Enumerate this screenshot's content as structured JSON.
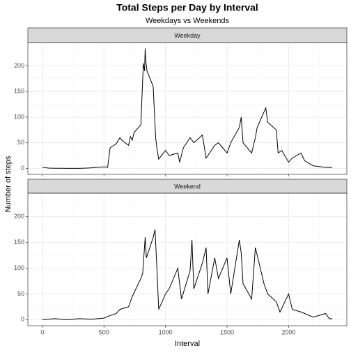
{
  "chart_data": {
    "type": "line",
    "title": "Total Steps per Day by Interval",
    "subtitle": "Weekdays vs Weekends",
    "xlabel": "Interval",
    "ylabel": "Number of steps",
    "facet": true,
    "grid": true,
    "xlim": [
      -118,
      2473
    ],
    "xticks": [
      0,
      500,
      1000,
      1500,
      2000
    ],
    "ylim": [
      -11.7,
      245.6
    ],
    "yticks": [
      0,
      50,
      100,
      150,
      200
    ],
    "series": [
      {
        "name": "Weekday",
        "color": "#000000",
        "x": [
          0,
          50,
          100,
          150,
          200,
          300,
          400,
          500,
          530,
          550,
          600,
          630,
          645,
          700,
          715,
          730,
          745,
          800,
          815,
          820,
          830,
          835,
          840,
          850,
          900,
          910,
          920,
          930,
          945,
          1000,
          1030,
          1100,
          1115,
          1145,
          1200,
          1230,
          1300,
          1330,
          1400,
          1430,
          1500,
          1530,
          1600,
          1615,
          1630,
          1700,
          1730,
          1745,
          1800,
          1815,
          1830,
          1900,
          1915,
          1945,
          2000,
          2030,
          2100,
          2130,
          2200,
          2300,
          2355
        ],
        "values": [
          2,
          0.5,
          0.3,
          0.2,
          0,
          0,
          1,
          3,
          2,
          40,
          48,
          60,
          55,
          45,
          62,
          55,
          70,
          85,
          175,
          205,
          190,
          234,
          210,
          190,
          160,
          110,
          60,
          40,
          18,
          35,
          25,
          30,
          12,
          40,
          60,
          50,
          65,
          20,
          45,
          50,
          30,
          50,
          80,
          100,
          50,
          30,
          60,
          80,
          110,
          118,
          90,
          75,
          30,
          35,
          12,
          20,
          30,
          15,
          5,
          2,
          2
        ]
      },
      {
        "name": "Weekend",
        "color": "#000000",
        "x": [
          0,
          100,
          200,
          300,
          400,
          500,
          550,
          600,
          630,
          700,
          730,
          800,
          815,
          835,
          845,
          900,
          915,
          930,
          945,
          1000,
          1030,
          1100,
          1130,
          1200,
          1215,
          1230,
          1300,
          1330,
          1345,
          1400,
          1430,
          1500,
          1530,
          1600,
          1615,
          1630,
          1700,
          1730,
          1800,
          1830,
          1900,
          1930,
          2000,
          2030,
          2100,
          2200,
          2300,
          2330,
          2355
        ],
        "values": [
          0,
          2,
          0,
          2,
          1,
          3,
          8,
          12,
          20,
          25,
          45,
          80,
          90,
          160,
          120,
          160,
          175,
          100,
          20,
          50,
          60,
          100,
          40,
          95,
          155,
          60,
          110,
          140,
          50,
          120,
          80,
          120,
          50,
          155,
          130,
          70,
          40,
          140,
          70,
          50,
          35,
          15,
          50,
          20,
          15,
          5,
          12,
          2,
          2
        ]
      }
    ]
  }
}
